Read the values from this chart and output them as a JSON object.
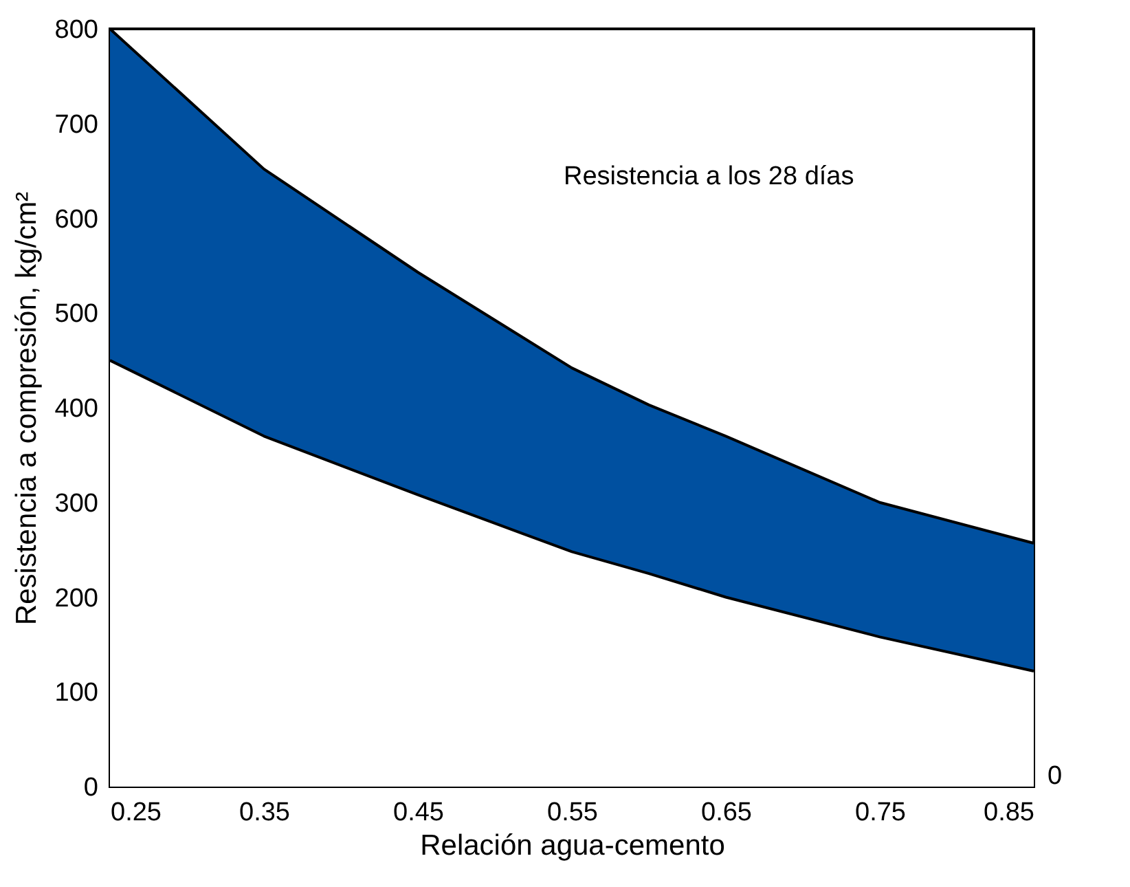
{
  "chart_data": {
    "type": "area",
    "stacked": true,
    "xlabel": "Relación agua-cemento",
    "ylabel": "Resistencia a compresión, kg/cm²",
    "annotations": [
      "Resistencia a los 28 días",
      "0"
    ],
    "x": [
      0.25,
      0.35,
      0.45,
      0.55,
      0.6,
      0.65,
      0.75,
      0.85
    ],
    "series": [
      {
        "color": "#ffffff",
        "values": [
          450,
          370,
          308,
          248,
          225,
          200,
          158,
          122
        ]
      },
      {
        "color": "#0050a0",
        "values": [
          350,
          282,
          235,
          194,
          178,
          170,
          142,
          135
        ]
      }
    ],
    "xlim": [
      0.25,
      0.85
    ],
    "xticks": [
      0.25,
      0.35,
      0.45,
      0.55,
      0.65,
      0.75,
      0.85
    ],
    "ylim": [
      0,
      800
    ],
    "yticks": [
      0,
      100,
      200,
      300,
      400,
      500,
      600,
      700,
      800
    ],
    "grid": false
  }
}
